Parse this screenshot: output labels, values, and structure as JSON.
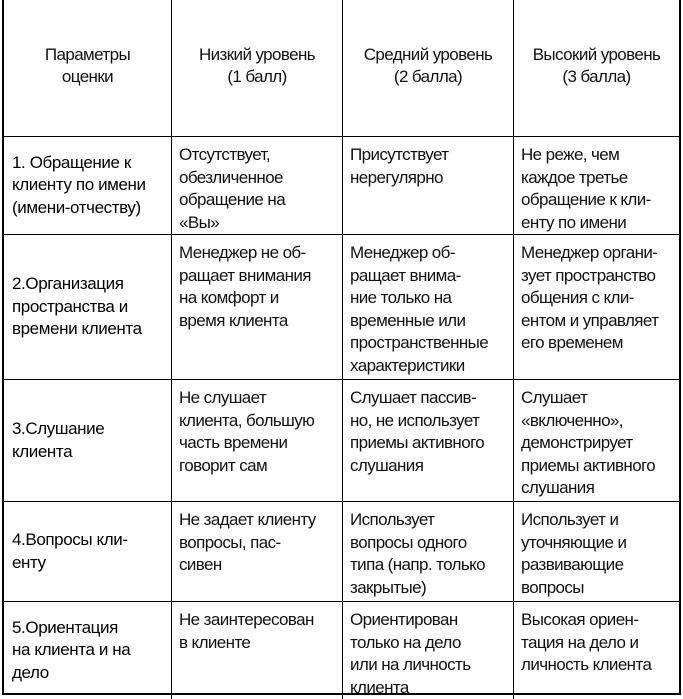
{
  "table": {
    "headers": [
      "Параметры\nоценки",
      "Низкий уровень\n(1 балл)",
      "Средний уровень\n(2 балла)",
      "Высокий уровень\n(3 балла)"
    ],
    "rows": [
      [
        "1. Обращение к\nклиенту по имени\n(имени-отчеству)",
        "Отсутствует,\nобезличенное\nобращение на\n«Вы»",
        "Присутствует\nнерегулярно",
        "Не реже, чем\nкаждое третье\nобращение к кли-\nенту по имени"
      ],
      [
        "2.Организация\nпространства и\nвремени клиента",
        "Менеджер не об-\nращает внимания\nна комфорт и\nвремя клиента",
        "Менеджер об-\nращает внима-\nние только на\nвременные или\nпространственные\nхарактеристики",
        "Менеджер органи-\nзует пространство\nобщения  с кли-\nентом и управляет\nего временем"
      ],
      [
        "3.Слушание\nклиента",
        "Не слушает\nклиента, большую\nчасть времени\nговорит сам",
        "Слушает пассив-\nно, не использует\nприемы активного\nслушания",
        "Слушает\n«включенно»,\nдемонстрирует\nприемы активного\nслушания"
      ],
      [
        "4.Вопросы кли-\nенту",
        "Не задает клиенту\nвопросы,  пас-\nсивен",
        "Использует\nвопросы одного\nтипа (напр. только\nзакрытые)",
        "Использует и\nуточняющие и\nразвивающие\nвопросы"
      ],
      [
        "5.Ориентация\nна клиента и на\nдело",
        "Не заинтересован\nв клиенте",
        "Ориентирован\nтолько на дело\nили на личность\nклиента",
        "Высокая ориен-\nтация на дело и\nличность клиента"
      ]
    ]
  }
}
